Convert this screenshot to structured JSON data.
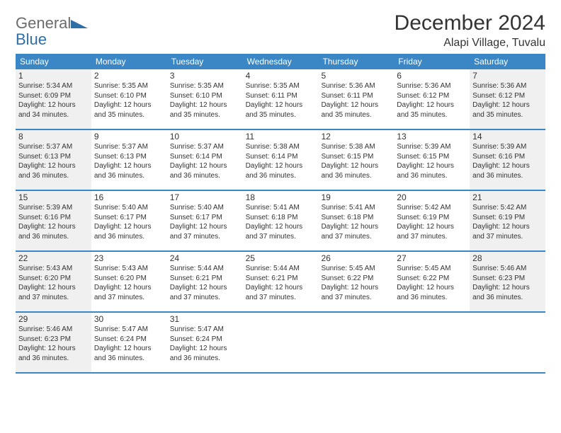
{
  "logo": {
    "text_general": "General",
    "text_blue": "Blue",
    "flag_color": "#2f6fa7"
  },
  "title": "December 2024",
  "location": "Alapi Village, Tuvalu",
  "colors": {
    "header_bg": "#3b86c4",
    "header_text": "#ffffff",
    "border": "#3b86c4",
    "shaded_bg": "#f0f0f0",
    "text": "#333333",
    "logo_gray": "#6b6b6b",
    "logo_blue": "#2f6fa7"
  },
  "day_headers": [
    "Sunday",
    "Monday",
    "Tuesday",
    "Wednesday",
    "Thursday",
    "Friday",
    "Saturday"
  ],
  "weeks": [
    [
      {
        "num": "1",
        "shaded": true,
        "sunrise": "Sunrise: 5:34 AM",
        "sunset": "Sunset: 6:09 PM",
        "day1": "Daylight: 12 hours",
        "day2": "and 34 minutes."
      },
      {
        "num": "2",
        "shaded": false,
        "sunrise": "Sunrise: 5:35 AM",
        "sunset": "Sunset: 6:10 PM",
        "day1": "Daylight: 12 hours",
        "day2": "and 35 minutes."
      },
      {
        "num": "3",
        "shaded": false,
        "sunrise": "Sunrise: 5:35 AM",
        "sunset": "Sunset: 6:10 PM",
        "day1": "Daylight: 12 hours",
        "day2": "and 35 minutes."
      },
      {
        "num": "4",
        "shaded": false,
        "sunrise": "Sunrise: 5:35 AM",
        "sunset": "Sunset: 6:11 PM",
        "day1": "Daylight: 12 hours",
        "day2": "and 35 minutes."
      },
      {
        "num": "5",
        "shaded": false,
        "sunrise": "Sunrise: 5:36 AM",
        "sunset": "Sunset: 6:11 PM",
        "day1": "Daylight: 12 hours",
        "day2": "and 35 minutes."
      },
      {
        "num": "6",
        "shaded": false,
        "sunrise": "Sunrise: 5:36 AM",
        "sunset": "Sunset: 6:12 PM",
        "day1": "Daylight: 12 hours",
        "day2": "and 35 minutes."
      },
      {
        "num": "7",
        "shaded": true,
        "sunrise": "Sunrise: 5:36 AM",
        "sunset": "Sunset: 6:12 PM",
        "day1": "Daylight: 12 hours",
        "day2": "and 35 minutes."
      }
    ],
    [
      {
        "num": "8",
        "shaded": true,
        "sunrise": "Sunrise: 5:37 AM",
        "sunset": "Sunset: 6:13 PM",
        "day1": "Daylight: 12 hours",
        "day2": "and 36 minutes."
      },
      {
        "num": "9",
        "shaded": false,
        "sunrise": "Sunrise: 5:37 AM",
        "sunset": "Sunset: 6:13 PM",
        "day1": "Daylight: 12 hours",
        "day2": "and 36 minutes."
      },
      {
        "num": "10",
        "shaded": false,
        "sunrise": "Sunrise: 5:37 AM",
        "sunset": "Sunset: 6:14 PM",
        "day1": "Daylight: 12 hours",
        "day2": "and 36 minutes."
      },
      {
        "num": "11",
        "shaded": false,
        "sunrise": "Sunrise: 5:38 AM",
        "sunset": "Sunset: 6:14 PM",
        "day1": "Daylight: 12 hours",
        "day2": "and 36 minutes."
      },
      {
        "num": "12",
        "shaded": false,
        "sunrise": "Sunrise: 5:38 AM",
        "sunset": "Sunset: 6:15 PM",
        "day1": "Daylight: 12 hours",
        "day2": "and 36 minutes."
      },
      {
        "num": "13",
        "shaded": false,
        "sunrise": "Sunrise: 5:39 AM",
        "sunset": "Sunset: 6:15 PM",
        "day1": "Daylight: 12 hours",
        "day2": "and 36 minutes."
      },
      {
        "num": "14",
        "shaded": true,
        "sunrise": "Sunrise: 5:39 AM",
        "sunset": "Sunset: 6:16 PM",
        "day1": "Daylight: 12 hours",
        "day2": "and 36 minutes."
      }
    ],
    [
      {
        "num": "15",
        "shaded": true,
        "sunrise": "Sunrise: 5:39 AM",
        "sunset": "Sunset: 6:16 PM",
        "day1": "Daylight: 12 hours",
        "day2": "and 36 minutes."
      },
      {
        "num": "16",
        "shaded": false,
        "sunrise": "Sunrise: 5:40 AM",
        "sunset": "Sunset: 6:17 PM",
        "day1": "Daylight: 12 hours",
        "day2": "and 36 minutes."
      },
      {
        "num": "17",
        "shaded": false,
        "sunrise": "Sunrise: 5:40 AM",
        "sunset": "Sunset: 6:17 PM",
        "day1": "Daylight: 12 hours",
        "day2": "and 37 minutes."
      },
      {
        "num": "18",
        "shaded": false,
        "sunrise": "Sunrise: 5:41 AM",
        "sunset": "Sunset: 6:18 PM",
        "day1": "Daylight: 12 hours",
        "day2": "and 37 minutes."
      },
      {
        "num": "19",
        "shaded": false,
        "sunrise": "Sunrise: 5:41 AM",
        "sunset": "Sunset: 6:18 PM",
        "day1": "Daylight: 12 hours",
        "day2": "and 37 minutes."
      },
      {
        "num": "20",
        "shaded": false,
        "sunrise": "Sunrise: 5:42 AM",
        "sunset": "Sunset: 6:19 PM",
        "day1": "Daylight: 12 hours",
        "day2": "and 37 minutes."
      },
      {
        "num": "21",
        "shaded": true,
        "sunrise": "Sunrise: 5:42 AM",
        "sunset": "Sunset: 6:19 PM",
        "day1": "Daylight: 12 hours",
        "day2": "and 37 minutes."
      }
    ],
    [
      {
        "num": "22",
        "shaded": true,
        "sunrise": "Sunrise: 5:43 AM",
        "sunset": "Sunset: 6:20 PM",
        "day1": "Daylight: 12 hours",
        "day2": "and 37 minutes."
      },
      {
        "num": "23",
        "shaded": false,
        "sunrise": "Sunrise: 5:43 AM",
        "sunset": "Sunset: 6:20 PM",
        "day1": "Daylight: 12 hours",
        "day2": "and 37 minutes."
      },
      {
        "num": "24",
        "shaded": false,
        "sunrise": "Sunrise: 5:44 AM",
        "sunset": "Sunset: 6:21 PM",
        "day1": "Daylight: 12 hours",
        "day2": "and 37 minutes."
      },
      {
        "num": "25",
        "shaded": false,
        "sunrise": "Sunrise: 5:44 AM",
        "sunset": "Sunset: 6:21 PM",
        "day1": "Daylight: 12 hours",
        "day2": "and 37 minutes."
      },
      {
        "num": "26",
        "shaded": false,
        "sunrise": "Sunrise: 5:45 AM",
        "sunset": "Sunset: 6:22 PM",
        "day1": "Daylight: 12 hours",
        "day2": "and 37 minutes."
      },
      {
        "num": "27",
        "shaded": false,
        "sunrise": "Sunrise: 5:45 AM",
        "sunset": "Sunset: 6:22 PM",
        "day1": "Daylight: 12 hours",
        "day2": "and 36 minutes."
      },
      {
        "num": "28",
        "shaded": true,
        "sunrise": "Sunrise: 5:46 AM",
        "sunset": "Sunset: 6:23 PM",
        "day1": "Daylight: 12 hours",
        "day2": "and 36 minutes."
      }
    ],
    [
      {
        "num": "29",
        "shaded": true,
        "sunrise": "Sunrise: 5:46 AM",
        "sunset": "Sunset: 6:23 PM",
        "day1": "Daylight: 12 hours",
        "day2": "and 36 minutes."
      },
      {
        "num": "30",
        "shaded": false,
        "sunrise": "Sunrise: 5:47 AM",
        "sunset": "Sunset: 6:24 PM",
        "day1": "Daylight: 12 hours",
        "day2": "and 36 minutes."
      },
      {
        "num": "31",
        "shaded": false,
        "sunrise": "Sunrise: 5:47 AM",
        "sunset": "Sunset: 6:24 PM",
        "day1": "Daylight: 12 hours",
        "day2": "and 36 minutes."
      },
      {
        "num": "",
        "shaded": false,
        "sunrise": "",
        "sunset": "",
        "day1": "",
        "day2": ""
      },
      {
        "num": "",
        "shaded": false,
        "sunrise": "",
        "sunset": "",
        "day1": "",
        "day2": ""
      },
      {
        "num": "",
        "shaded": false,
        "sunrise": "",
        "sunset": "",
        "day1": "",
        "day2": ""
      },
      {
        "num": "",
        "shaded": false,
        "sunrise": "",
        "sunset": "",
        "day1": "",
        "day2": ""
      }
    ]
  ]
}
